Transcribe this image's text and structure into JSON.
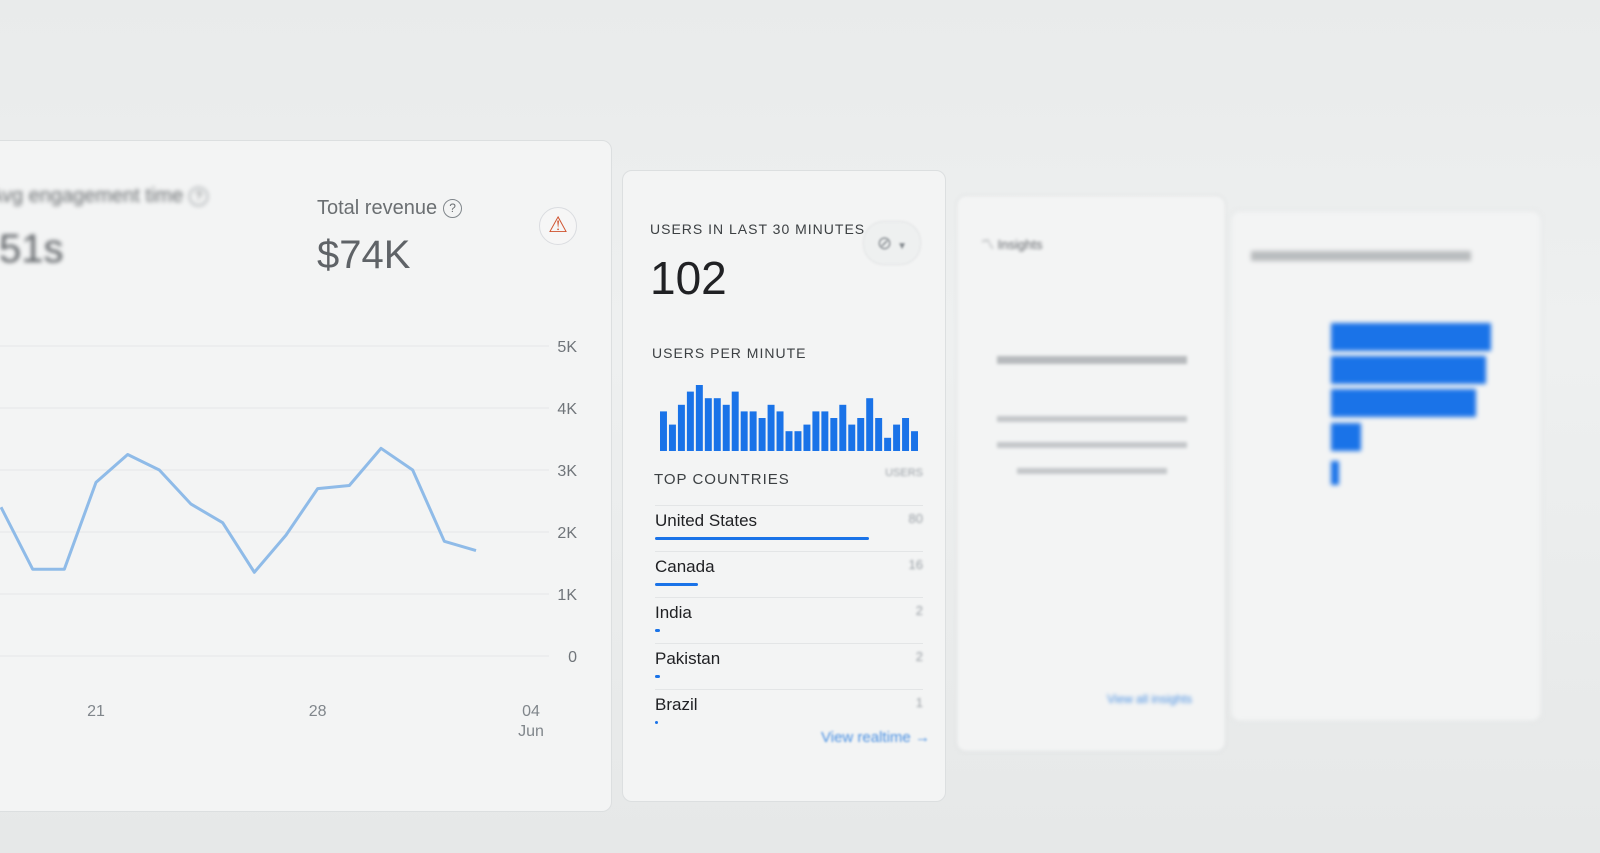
{
  "metrics": {
    "engagement_label": "Avg engagement time",
    "engagement_value": "51s",
    "revenue_label": "Total revenue",
    "revenue_value": "$74K",
    "help_icon": "?",
    "warning_icon": "⚠"
  },
  "realtime": {
    "title": "USERS IN LAST 30 MINUTES",
    "value": "102",
    "per_minute_label": "USERS PER MINUTE",
    "top_countries_label": "TOP COUNTRIES",
    "users_col": "USERS",
    "countries": [
      {
        "name": "United States",
        "users": "80",
        "share": 1.0
      },
      {
        "name": "Canada",
        "users": "16",
        "share": 0.2
      },
      {
        "name": "India",
        "users": "2",
        "share": 0.025
      },
      {
        "name": "Pakistan",
        "users": "2",
        "share": 0.025
      },
      {
        "name": "Brazil",
        "users": "1",
        "share": 0.0125
      }
    ],
    "view_link": "View realtime",
    "arrow": "→"
  },
  "insights": {
    "title": "Insights",
    "link": "View all insights"
  },
  "colors": {
    "accent": "#1a73e8",
    "line": "#8fbbe8",
    "warning": "#d0532f"
  },
  "chart_data": [
    {
      "type": "line",
      "x": [
        "May 18",
        "May 19",
        "May 20",
        "May 21",
        "May 22",
        "May 23",
        "May 24",
        "May 25",
        "May 26",
        "May 27",
        "May 28",
        "May 29",
        "May 30",
        "May 31",
        "Jun 01",
        "Jun 02"
      ],
      "values": [
        2400,
        1400,
        1400,
        2800,
        3250,
        3000,
        2450,
        2150,
        1350,
        1950,
        2700,
        2750,
        3350,
        3000,
        1850,
        1700
      ],
      "yticks": [
        "0",
        "1K",
        "2K",
        "3K",
        "4K",
        "5K"
      ],
      "xticks": [
        {
          "at": "May 21",
          "label": "21"
        },
        {
          "at": "May 28",
          "label": "28"
        },
        {
          "label": "04",
          "sub": "Jun"
        }
      ],
      "ylim": [
        0,
        5000
      ],
      "grid": true
    },
    {
      "type": "bar",
      "title": "USERS PER MINUTE",
      "values": [
        6,
        4,
        7,
        9,
        10,
        8,
        8,
        7,
        9,
        6,
        6,
        5,
        7,
        6,
        3,
        3,
        4,
        6,
        6,
        5,
        7,
        4,
        5,
        8,
        5,
        2,
        4,
        5,
        3
      ]
    }
  ]
}
